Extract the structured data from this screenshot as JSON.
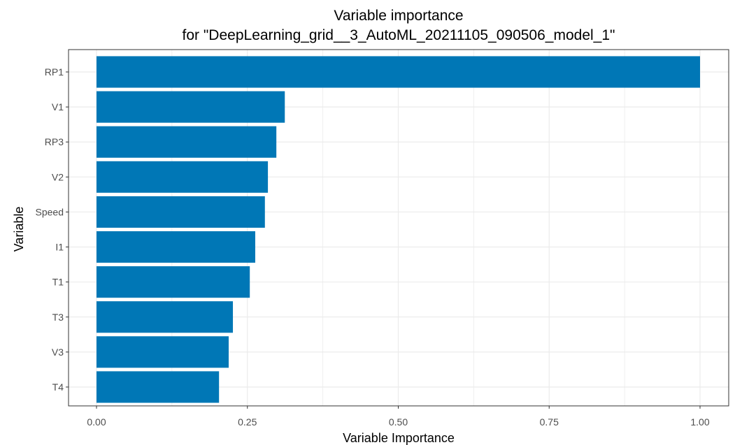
{
  "chart_data": {
    "type": "bar",
    "orientation": "horizontal",
    "title": "Variable importance",
    "subtitle": "for \"DeepLearning_grid__3_AutoML_20211105_090506_model_1\"",
    "xlabel": "Variable Importance",
    "ylabel": "Variable",
    "categories": [
      "RP1",
      "V1",
      "RP3",
      "V2",
      "Speed",
      "I1",
      "T1",
      "T3",
      "V3",
      "T4"
    ],
    "values": [
      1.0,
      0.312,
      0.298,
      0.284,
      0.279,
      0.263,
      0.254,
      0.226,
      0.219,
      0.203
    ],
    "xlim": [
      0,
      1
    ],
    "xticks": [
      "0.00",
      "0.25",
      "0.50",
      "0.75",
      "1.00"
    ],
    "grid": true,
    "legend": "none",
    "bar_color": "#0077B6",
    "grid_color": "#EBEBEB",
    "panel_border_color": "#333333"
  }
}
